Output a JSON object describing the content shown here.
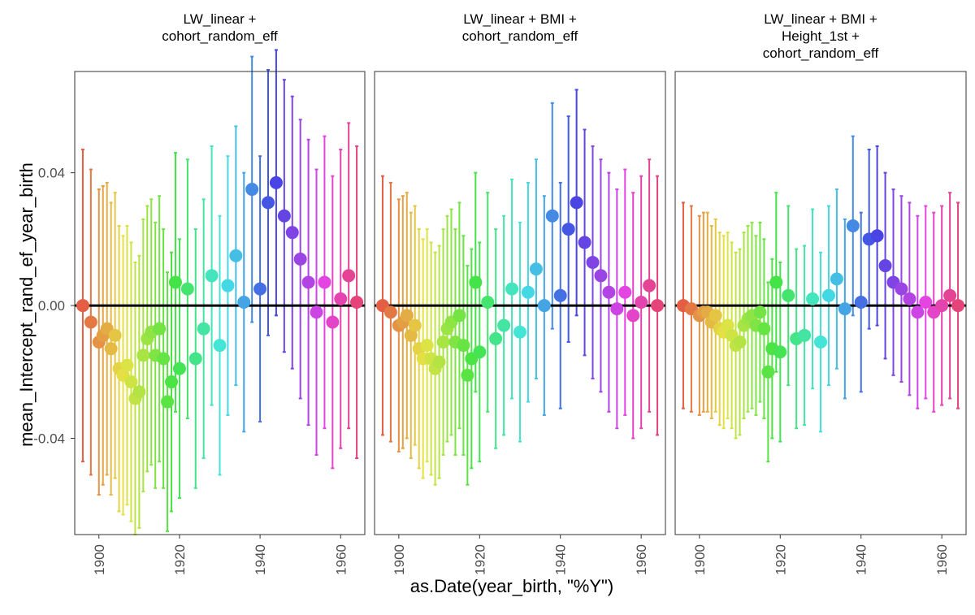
{
  "figure": {
    "xlabel": "as.Date(year_birth, \"%Y\")",
    "ylabel": "mean_Intercept_rand_ef_year_birth"
  },
  "chart_data": {
    "type": "scatter",
    "grid": false,
    "x_ticks": [
      1900,
      1920,
      1940,
      1960
    ],
    "y_ticks": [
      -0.04,
      0.0,
      0.04
    ],
    "y_tick_labels": [
      "-0.04",
      "0.00",
      "0.04"
    ],
    "xlim": [
      1894,
      1966
    ],
    "ylim": [
      -0.069,
      0.0705
    ],
    "reference_line": 0,
    "color_scale": "rainbow hue by year of birth (1896 red → 1964 pink)",
    "panels": [
      {
        "title": "LW_linear +\ncohort_random_eff",
        "x": [
          1896,
          1898,
          1900,
          1901,
          1902,
          1903,
          1904,
          1905,
          1906,
          1907,
          1908,
          1909,
          1910,
          1911,
          1912,
          1913,
          1914,
          1915,
          1916,
          1917,
          1918,
          1919,
          1920,
          1922,
          1924,
          1926,
          1928,
          1930,
          1932,
          1934,
          1936,
          1938,
          1940,
          1942,
          1944,
          1946,
          1948,
          1950,
          1952,
          1954,
          1956,
          1958,
          1960,
          1962,
          1964
        ],
        "y": [
          0.0,
          -0.005,
          -0.011,
          -0.009,
          -0.007,
          -0.013,
          -0.009,
          -0.019,
          -0.021,
          -0.018,
          -0.023,
          -0.028,
          -0.026,
          -0.015,
          -0.01,
          -0.008,
          -0.015,
          -0.007,
          -0.016,
          -0.029,
          -0.023,
          0.007,
          -0.019,
          0.005,
          -0.016,
          -0.007,
          0.009,
          -0.012,
          0.006,
          0.015,
          0.001,
          0.035,
          0.005,
          0.031,
          0.037,
          0.027,
          0.022,
          0.014,
          0.007,
          -0.002,
          0.007,
          -0.005,
          0.002,
          0.009,
          0.001
        ],
        "err": [
          0.047,
          0.046,
          0.046,
          0.045,
          0.044,
          0.044,
          0.043,
          0.043,
          0.042,
          0.042,
          0.042,
          0.041,
          0.041,
          0.041,
          0.04,
          0.04,
          0.04,
          0.04,
          0.039,
          0.039,
          0.039,
          0.039,
          0.039,
          0.039,
          0.039,
          0.039,
          0.039,
          0.039,
          0.039,
          0.039,
          0.039,
          0.04,
          0.04,
          0.04,
          0.04,
          0.041,
          0.041,
          0.042,
          0.043,
          0.043,
          0.044,
          0.044,
          0.045,
          0.046,
          0.047
        ]
      },
      {
        "title": "LW_linear + BMI +\ncohort_random_eff",
        "x": [
          1896,
          1898,
          1900,
          1901,
          1902,
          1903,
          1904,
          1905,
          1906,
          1907,
          1908,
          1909,
          1910,
          1911,
          1912,
          1913,
          1914,
          1915,
          1916,
          1917,
          1918,
          1919,
          1920,
          1922,
          1924,
          1926,
          1928,
          1930,
          1932,
          1934,
          1936,
          1938,
          1940,
          1942,
          1944,
          1946,
          1948,
          1950,
          1952,
          1954,
          1956,
          1958,
          1960,
          1962,
          1964
        ],
        "y": [
          0.0,
          -0.002,
          -0.006,
          -0.005,
          -0.003,
          -0.009,
          -0.006,
          -0.013,
          -0.016,
          -0.012,
          -0.016,
          -0.019,
          -0.017,
          -0.011,
          -0.007,
          -0.005,
          -0.011,
          -0.003,
          -0.012,
          -0.021,
          -0.016,
          0.007,
          -0.014,
          0.001,
          -0.01,
          -0.006,
          0.005,
          -0.008,
          0.004,
          0.011,
          0.0,
          0.027,
          0.003,
          0.023,
          0.031,
          0.019,
          0.013,
          0.009,
          0.004,
          -0.001,
          0.004,
          -0.003,
          0.001,
          0.006,
          0.0
        ],
        "err": [
          0.039,
          0.039,
          0.038,
          0.038,
          0.037,
          0.037,
          0.036,
          0.036,
          0.036,
          0.035,
          0.035,
          0.035,
          0.035,
          0.034,
          0.034,
          0.034,
          0.034,
          0.034,
          0.033,
          0.033,
          0.033,
          0.033,
          0.033,
          0.033,
          0.033,
          0.033,
          0.033,
          0.033,
          0.033,
          0.033,
          0.033,
          0.034,
          0.034,
          0.034,
          0.034,
          0.034,
          0.035,
          0.035,
          0.036,
          0.036,
          0.037,
          0.037,
          0.038,
          0.038,
          0.039
        ]
      },
      {
        "title": "LW_linear + BMI +\nHeight_1st +\ncohort_random_eff",
        "x": [
          1896,
          1898,
          1900,
          1901,
          1902,
          1903,
          1904,
          1905,
          1906,
          1907,
          1908,
          1909,
          1910,
          1911,
          1912,
          1913,
          1914,
          1915,
          1916,
          1917,
          1918,
          1919,
          1920,
          1922,
          1924,
          1926,
          1928,
          1930,
          1932,
          1934,
          1936,
          1938,
          1940,
          1942,
          1944,
          1946,
          1948,
          1950,
          1952,
          1954,
          1956,
          1958,
          1960,
          1962,
          1964
        ],
        "y": [
          0.0,
          -0.001,
          -0.003,
          -0.002,
          -0.002,
          -0.005,
          -0.003,
          -0.007,
          -0.008,
          -0.006,
          -0.009,
          -0.012,
          -0.011,
          -0.006,
          -0.004,
          -0.003,
          -0.006,
          -0.002,
          -0.007,
          -0.02,
          -0.013,
          0.007,
          -0.014,
          0.003,
          -0.01,
          -0.009,
          0.002,
          -0.011,
          0.003,
          0.008,
          -0.001,
          0.024,
          0.001,
          0.02,
          0.021,
          0.012,
          0.007,
          0.005,
          0.002,
          -0.002,
          0.001,
          -0.002,
          0.0,
          0.003,
          0.0
        ],
        "err": [
          0.031,
          0.031,
          0.03,
          0.03,
          0.03,
          0.029,
          0.029,
          0.029,
          0.029,
          0.028,
          0.028,
          0.028,
          0.028,
          0.028,
          0.028,
          0.028,
          0.027,
          0.027,
          0.027,
          0.027,
          0.027,
          0.027,
          0.027,
          0.027,
          0.027,
          0.027,
          0.027,
          0.027,
          0.027,
          0.027,
          0.027,
          0.027,
          0.027,
          0.027,
          0.027,
          0.028,
          0.028,
          0.028,
          0.029,
          0.029,
          0.029,
          0.03,
          0.03,
          0.031,
          0.031
        ]
      }
    ]
  }
}
